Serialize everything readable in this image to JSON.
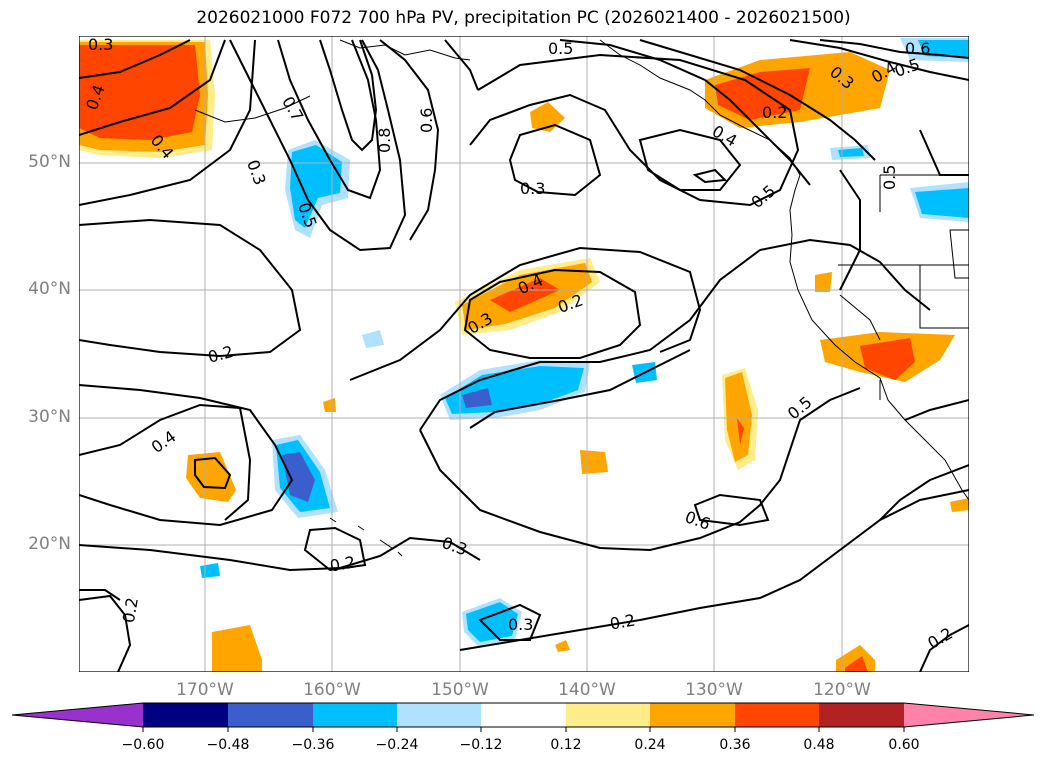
{
  "title": "2026021000 F072 700 hPa PV, precipitation PC (2026021400 - 2026021500)",
  "map": {
    "projection": "lat-lon",
    "lat_ticks": [
      "50°N",
      "40°N",
      "30°N",
      "20°N"
    ],
    "lon_ticks": [
      "170°W",
      "160°W",
      "150°W",
      "140°W",
      "130°W",
      "120°W"
    ],
    "contour_labels": [
      "0.3",
      "0.4",
      "0.4",
      "0.3",
      "0.7",
      "0.5",
      "0.8",
      "0.6",
      "0.5",
      "0.3",
      "0.6",
      "0.4",
      "0.5",
      "0.3",
      "0.2",
      "0.4",
      "0.5",
      "0.5",
      "0.2",
      "0.4",
      "0.3",
      "0.2",
      "0.5",
      "0.6",
      "0.4",
      "0.3",
      "0.2",
      "0.2",
      "0.3",
      "0.2",
      "0.2"
    ]
  },
  "colorbar": {
    "ticks": [
      "−0.60",
      "−0.48",
      "−0.36",
      "−0.24",
      "−0.12",
      "0.12",
      "0.24",
      "0.36",
      "0.48",
      "0.60"
    ],
    "colors": [
      "#9932cc",
      "#000080",
      "#3a5fcd",
      "#00bfff",
      "#b0e2ff",
      "#ffffff",
      "#ffec8b",
      "#ffa500",
      "#ff4500",
      "#b22222",
      "#ff82ab"
    ]
  }
}
